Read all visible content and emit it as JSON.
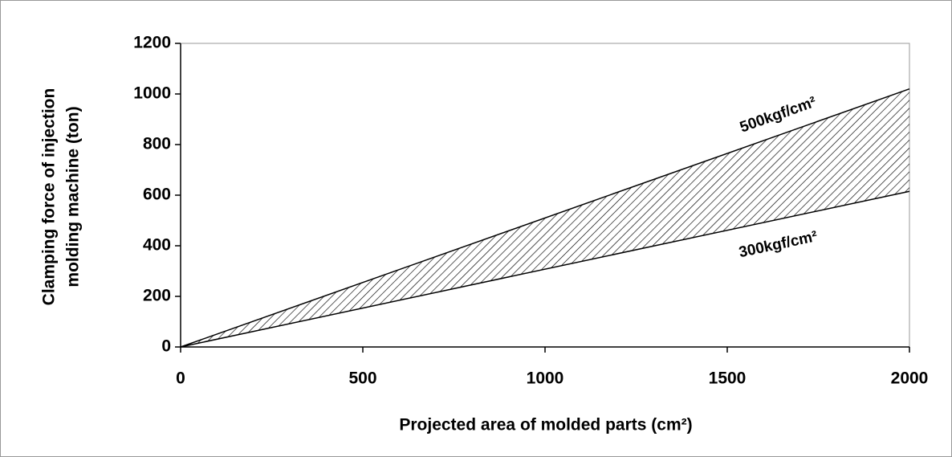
{
  "chart_data": {
    "type": "line",
    "xlabel": "Projected area of molded parts (cm²)",
    "ylabel": [
      "Clamping force of injection",
      "molding machine (ton)"
    ],
    "x": [
      0,
      2000
    ],
    "series": [
      {
        "name": "500kgf/cm²",
        "color": "#000000",
        "values": [
          0,
          1020
        ]
      },
      {
        "name": "300kgf/cm²",
        "color": "#000000",
        "values": [
          0,
          615
        ]
      }
    ],
    "fill_between": true,
    "xlim": [
      0,
      2000
    ],
    "xticks": [
      0,
      500,
      1000,
      1500,
      2000
    ],
    "ylim": [
      0,
      1200
    ],
    "yticks": [
      0,
      200,
      400,
      600,
      800,
      1000,
      1200
    ]
  }
}
